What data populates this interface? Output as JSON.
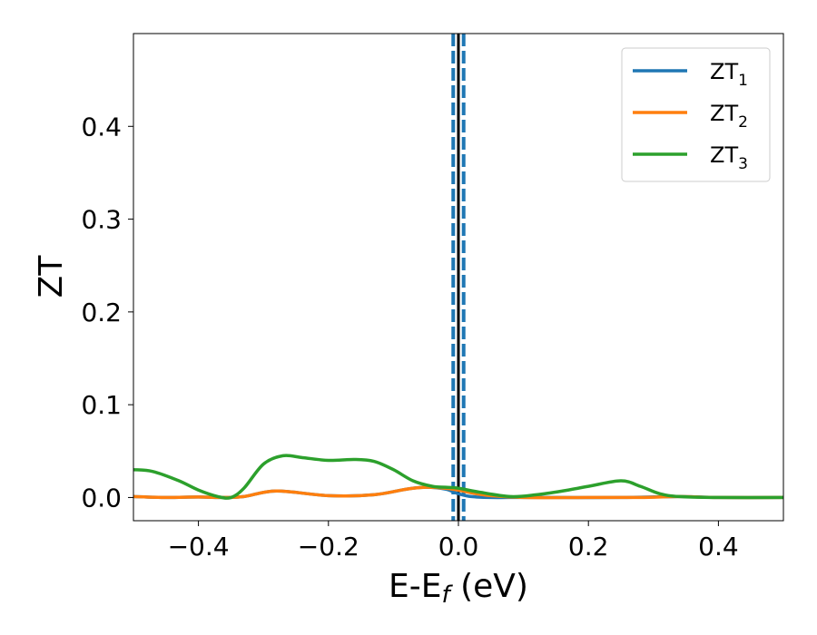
{
  "chart_data": {
    "type": "line",
    "title": "",
    "xlabel": "E-E",
    "xlabel_sub": "f",
    "xlabel_unit": " (eV)",
    "ylabel": "ZT",
    "xlim": [
      -0.5,
      0.5
    ],
    "ylim": [
      -0.025,
      0.5
    ],
    "xticks": [
      -0.4,
      -0.2,
      0.0,
      0.2,
      0.4
    ],
    "xtick_labels": [
      "−0.4",
      "−0.2",
      "0.0",
      "0.2",
      "0.4"
    ],
    "yticks": [
      0.0,
      0.1,
      0.2,
      0.3,
      0.4
    ],
    "ytick_labels": [
      "0.0",
      "0.1",
      "0.2",
      "0.3",
      "0.4"
    ],
    "legend_position": "top-right",
    "vertical_lines": [
      {
        "x": 0.0,
        "color": "#000000",
        "style": "solid"
      },
      {
        "x": -0.008,
        "color": "#1f77b4",
        "style": "dashed"
      },
      {
        "x": 0.008,
        "color": "#1f77b4",
        "style": "dashed"
      }
    ],
    "series": [
      {
        "name": "ZT",
        "sub": "1",
        "color": "#1f77b4",
        "x": [
          -0.5,
          -0.45,
          -0.4,
          -0.36,
          -0.33,
          -0.28,
          -0.2,
          -0.13,
          -0.08,
          -0.05,
          -0.02,
          0.0,
          0.02,
          0.05,
          0.08,
          0.15,
          0.25,
          0.34,
          0.4,
          0.5
        ],
        "y": [
          0.001,
          0.0,
          0.0005,
          0.0,
          0.001,
          0.007,
          0.002,
          0.003,
          0.009,
          0.011,
          0.009,
          0.004,
          0.001,
          0.0,
          0.0,
          0.0,
          0.0,
          0.001,
          0.0,
          0.0
        ]
      },
      {
        "name": "ZT",
        "sub": "2",
        "color": "#ff7f0e",
        "x": [
          -0.5,
          -0.45,
          -0.4,
          -0.36,
          -0.33,
          -0.28,
          -0.2,
          -0.13,
          -0.08,
          -0.05,
          -0.02,
          0.0,
          0.02,
          0.05,
          0.1,
          0.2,
          0.28,
          0.34,
          0.4,
          0.5
        ],
        "y": [
          0.001,
          0.0,
          0.0005,
          0.0,
          0.001,
          0.007,
          0.002,
          0.003,
          0.009,
          0.011,
          0.01,
          0.008,
          0.005,
          0.002,
          0.0,
          0.0,
          0.0,
          0.001,
          0.0,
          0.0
        ]
      },
      {
        "name": "ZT",
        "sub": "3",
        "color": "#2ca02c",
        "x": [
          -0.5,
          -0.47,
          -0.43,
          -0.4,
          -0.37,
          -0.35,
          -0.33,
          -0.3,
          -0.27,
          -0.24,
          -0.2,
          -0.16,
          -0.13,
          -0.1,
          -0.07,
          -0.04,
          -0.02,
          0.0,
          0.03,
          0.08,
          0.12,
          0.16,
          0.2,
          0.25,
          0.28,
          0.31,
          0.34,
          0.4,
          0.5
        ],
        "y": [
          0.03,
          0.028,
          0.018,
          0.008,
          0.001,
          0.0,
          0.01,
          0.036,
          0.045,
          0.043,
          0.04,
          0.041,
          0.039,
          0.03,
          0.018,
          0.012,
          0.011,
          0.01,
          0.006,
          0.001,
          0.003,
          0.007,
          0.012,
          0.018,
          0.012,
          0.004,
          0.001,
          0.0,
          0.0
        ]
      }
    ]
  }
}
